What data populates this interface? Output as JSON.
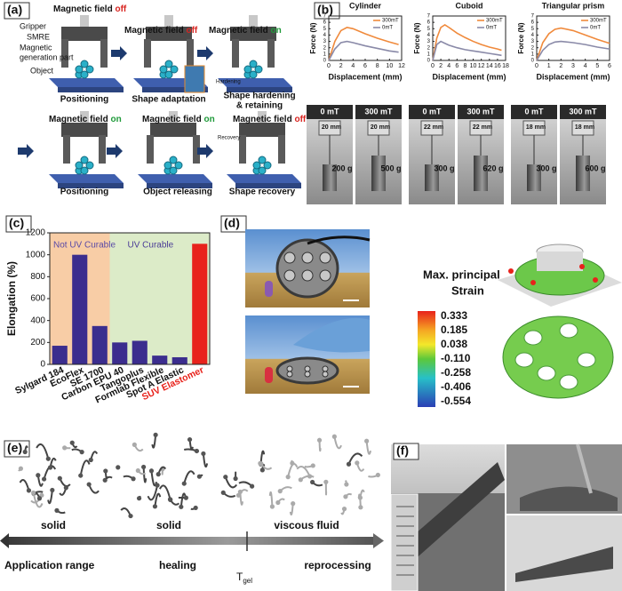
{
  "panels": {
    "a": {
      "label": "(a)",
      "field": "Magnetic field",
      "steps": [
        {
          "state": "off",
          "color": "#d8231f",
          "caption": [
            "Positioning"
          ]
        },
        {
          "state": "off",
          "color": "#d8231f",
          "caption": [
            "Shape adaptation"
          ]
        },
        {
          "state": "on",
          "color": "#1f9a3a",
          "caption": [
            "Shape hardening",
            "& retaining"
          ]
        },
        {
          "state": "on",
          "color": "#1f9a3a",
          "caption": [
            "Positioning"
          ]
        },
        {
          "state": "on",
          "color": "#1f9a3a",
          "caption": [
            "Object releasing"
          ]
        },
        {
          "state": "off",
          "color": "#d8231f",
          "caption": [
            "Shape recovery"
          ]
        }
      ],
      "parts": [
        "Gripper",
        "SMRE",
        "Magnetic",
        "generation part",
        "Object"
      ],
      "notes": [
        "Hardening",
        "Recovery"
      ]
    },
    "b": {
      "label": "(b)",
      "photos": [
        {
          "states": [
            "0 mT",
            "300 mT"
          ],
          "size": "20 mm",
          "loads": [
            "200 g",
            "500 g"
          ]
        },
        {
          "states": [
            "0 mT",
            "300 mT"
          ],
          "size": "22 mm",
          "loads": [
            "300 g",
            "620 g"
          ]
        },
        {
          "states": [
            "0 mT",
            "300 mT"
          ],
          "size": "18 mm",
          "loads": [
            "300 g",
            "600 g"
          ]
        }
      ]
    },
    "c": {
      "label": "(c)"
    },
    "d": {
      "label": "(d)",
      "title": [
        "Max. principal",
        "Strain"
      ],
      "colorbar": [
        "0.333",
        "0.185",
        "0.038",
        "-0.110",
        "-0.258",
        "-0.406",
        "-0.554"
      ]
    },
    "e": {
      "label": "(e)",
      "states": [
        "solid",
        "solid",
        "viscous fluid"
      ],
      "ranges": [
        "Application range",
        "healing",
        "reprocessing"
      ],
      "tgel": {
        "symbol": "T",
        "subscript": "gel"
      }
    },
    "f": {
      "label": "(f)"
    }
  },
  "chart_data": [
    {
      "type": "line",
      "title": "Cylinder",
      "xlabel": "Displacement (mm)",
      "ylabel": "Force (N)",
      "x": [
        0,
        1,
        2,
        3,
        4,
        6,
        8,
        10,
        11.5
      ],
      "xlim": [
        0,
        12
      ],
      "xticks": [
        0,
        2,
        4,
        6,
        8,
        10,
        12
      ],
      "ylim": [
        0,
        7
      ],
      "yticks": [
        0,
        1,
        2,
        3,
        4,
        5,
        6,
        7
      ],
      "series": [
        {
          "name": "300mT",
          "color": "#f08a3c",
          "values": [
            0,
            3,
            4.7,
            5.2,
            5,
            4.2,
            3.5,
            2.9,
            2.5
          ]
        },
        {
          "name": "0mT",
          "color": "#8a8aa8",
          "values": [
            0,
            1.8,
            2.8,
            3,
            2.8,
            2.3,
            1.9,
            1.5,
            1.3
          ]
        }
      ]
    },
    {
      "type": "line",
      "title": "Cuboid",
      "xlabel": "Displacement (mm)",
      "ylabel": "Force (N)",
      "x": [
        0,
        1,
        2,
        3,
        4,
        6,
        8,
        10,
        12,
        14,
        16,
        17
      ],
      "xlim": [
        0,
        18
      ],
      "xticks": [
        0,
        2,
        4,
        6,
        8,
        10,
        12,
        14,
        16,
        18
      ],
      "ylim": [
        0,
        7
      ],
      "yticks": [
        0,
        1,
        2,
        3,
        4,
        5,
        6,
        7
      ],
      "series": [
        {
          "name": "300mT",
          "color": "#f08a3c",
          "values": [
            0,
            3.5,
            5.2,
            5.6,
            5.2,
            4.3,
            3.6,
            3,
            2.5,
            2.1,
            1.8,
            1.6
          ]
        },
        {
          "name": "0mT",
          "color": "#8a8aa8",
          "values": [
            0,
            2.5,
            3,
            2.7,
            2.4,
            2,
            1.7,
            1.5,
            1.3,
            1.1,
            0.9,
            0.8
          ]
        }
      ]
    },
    {
      "type": "line",
      "title": "Triangular prism",
      "xlabel": "Displacement (mm)",
      "ylabel": "Force (N)",
      "x": [
        0,
        0.5,
        1,
        1.5,
        2,
        3,
        4,
        5,
        6
      ],
      "xlim": [
        0,
        6
      ],
      "xticks": [
        0,
        1,
        2,
        3,
        4,
        5,
        6
      ],
      "ylim": [
        0,
        7
      ],
      "yticks": [
        0,
        1,
        2,
        3,
        4,
        5,
        6,
        7
      ],
      "series": [
        {
          "name": "300mT",
          "color": "#f08a3c",
          "values": [
            0,
            2.8,
            4.2,
            4.9,
            5.1,
            4.7,
            4,
            3.3,
            2.7
          ]
        },
        {
          "name": "0mT",
          "color": "#8a8aa8",
          "values": [
            0,
            1.6,
            2.5,
            2.9,
            3,
            2.8,
            2.5,
            2.1,
            1.8
          ]
        }
      ]
    },
    {
      "type": "bar",
      "ylabel": "Elongation (%)",
      "categories": [
        "Sylgard 184",
        "EcoFlex",
        "SE 1700",
        "Carbon EPU 40",
        "Tangoplus",
        "Formlab Flexible",
        "Spot A Elastic",
        "SUV Elastomer"
      ],
      "values": [
        170,
        1000,
        350,
        200,
        215,
        80,
        65,
        1100
      ],
      "colors": [
        "#3b2d8e",
        "#3b2d8e",
        "#3b2d8e",
        "#3b2d8e",
        "#3b2d8e",
        "#3b2d8e",
        "#3b2d8e",
        "#e8221b"
      ],
      "ylim": [
        0,
        1200
      ],
      "yticks": [
        0,
        200,
        400,
        600,
        800,
        1000,
        1200
      ],
      "regions": [
        {
          "label": "Not UV Curable",
          "color": "#f8cda6"
        },
        {
          "label": "UV Curable",
          "color": "#dcebc8"
        }
      ]
    }
  ]
}
